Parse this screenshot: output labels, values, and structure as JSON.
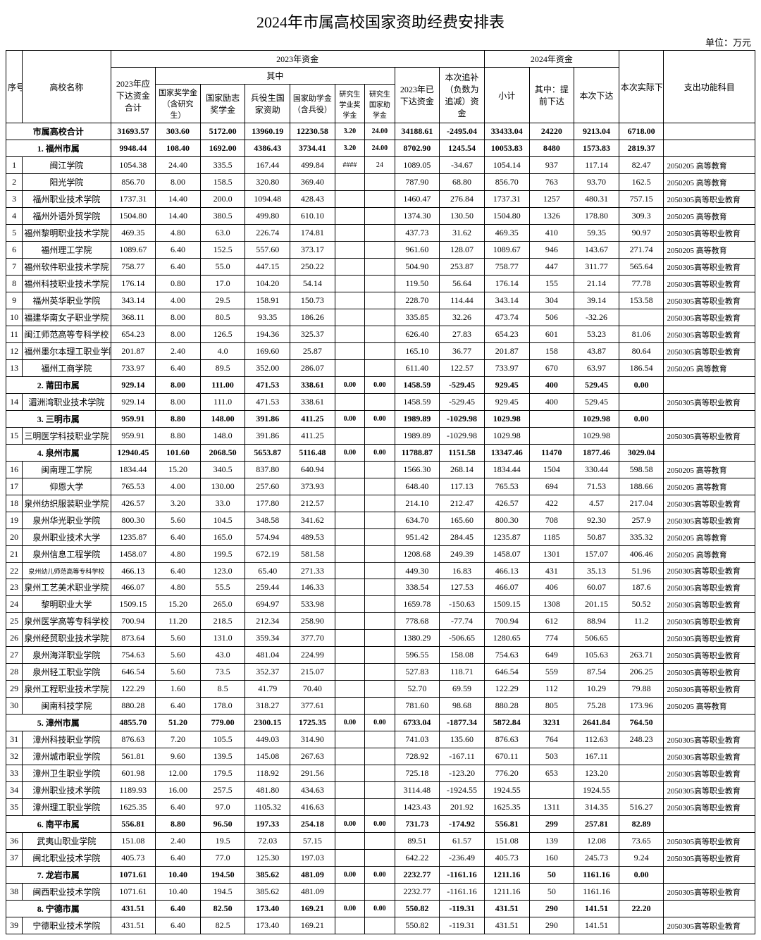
{
  "title": "2024年市属高校国家资助经费安排表",
  "unit": "单位：万元",
  "headers": {
    "idx": "序号",
    "name": "高校名称",
    "y2023": "2023年资金",
    "y2024": "2024年资金",
    "total2023": "2023年应下达资金合计",
    "ofwhich": "其中",
    "gjj": "国家奖学金（含研究生）",
    "gjlz": "国家励志奖学金",
    "bys": "兵役生国家资助",
    "gjzx": "国家助学金（含兵役）",
    "yjsxy": "研究生学业奖学金",
    "yjsgjzx": "研究生国家助学金",
    "already": "2023年已下达资金",
    "supp": "本次追补（负数为追减）资金",
    "subtotal": "小计",
    "pre": "其中：提前下达",
    "this": "本次下达",
    "actual": "本次实际下达资金",
    "cat": "支出功能科目"
  },
  "rows": [
    {
      "t": "sum",
      "bold": true,
      "idx": "",
      "name": "市属高校合计",
      "v": [
        "31693.57",
        "303.60",
        "5172.00",
        "13960.19",
        "12230.58",
        "3.20",
        "24.00",
        "34188.61",
        "-2495.04",
        "33433.04",
        "24220",
        "9213.04",
        "6718.00",
        ""
      ]
    },
    {
      "t": "sum",
      "bold": true,
      "idx": "",
      "name": "1. 福州市属",
      "v": [
        "9948.44",
        "108.40",
        "1692.00",
        "4386.43",
        "3734.41",
        "3.20",
        "24.00",
        "8702.90",
        "1245.54",
        "10053.83",
        "8480",
        "1573.83",
        "2819.37",
        ""
      ]
    },
    {
      "idx": "1",
      "name": "闽江学院",
      "v": [
        "1054.38",
        "24.40",
        "335.5",
        "167.44",
        "499.84",
        "####",
        "24",
        "1089.05",
        "-34.67",
        "1054.14",
        "937",
        "117.14",
        "82.47",
        "2050205 高等教育"
      ]
    },
    {
      "idx": "2",
      "name": "阳光学院",
      "v": [
        "856.70",
        "8.00",
        "158.5",
        "320.80",
        "369.40",
        "",
        "",
        "787.90",
        "68.80",
        "856.70",
        "763",
        "93.70",
        "162.5",
        "2050205 高等教育"
      ]
    },
    {
      "idx": "3",
      "name": "福州职业技术学院",
      "v": [
        "1737.31",
        "14.40",
        "200.0",
        "1094.48",
        "428.43",
        "",
        "",
        "1460.47",
        "276.84",
        "1737.31",
        "1257",
        "480.31",
        "757.15",
        "2050305高等职业教育"
      ]
    },
    {
      "idx": "4",
      "name": "福州外语外贸学院",
      "v": [
        "1504.80",
        "14.40",
        "380.5",
        "499.80",
        "610.10",
        "",
        "",
        "1374.30",
        "130.50",
        "1504.80",
        "1326",
        "178.80",
        "309.3",
        "2050205 高等教育"
      ]
    },
    {
      "idx": "5",
      "name": "福州黎明职业技术学院",
      "v": [
        "469.35",
        "4.80",
        "63.0",
        "226.74",
        "174.81",
        "",
        "",
        "437.73",
        "31.62",
        "469.35",
        "410",
        "59.35",
        "90.97",
        "2050305高等职业教育"
      ]
    },
    {
      "idx": "6",
      "name": "福州理工学院",
      "v": [
        "1089.67",
        "6.40",
        "152.5",
        "557.60",
        "373.17",
        "",
        "",
        "961.60",
        "128.07",
        "1089.67",
        "946",
        "143.67",
        "271.74",
        "2050205 高等教育"
      ]
    },
    {
      "idx": "7",
      "name": "福州软件职业技术学院",
      "v": [
        "758.77",
        "6.40",
        "55.0",
        "447.15",
        "250.22",
        "",
        "",
        "504.90",
        "253.87",
        "758.77",
        "447",
        "311.77",
        "565.64",
        "2050305高等职业教育"
      ]
    },
    {
      "idx": "8",
      "name": "福州科技职业技术学院",
      "v": [
        "176.14",
        "0.80",
        "17.0",
        "104.20",
        "54.14",
        "",
        "",
        "119.50",
        "56.64",
        "176.14",
        "155",
        "21.14",
        "77.78",
        "2050305高等职业教育"
      ]
    },
    {
      "idx": "9",
      "name": "福州英华职业学院",
      "v": [
        "343.14",
        "4.00",
        "29.5",
        "158.91",
        "150.73",
        "",
        "",
        "228.70",
        "114.44",
        "343.14",
        "304",
        "39.14",
        "153.58",
        "2050305高等职业教育"
      ]
    },
    {
      "idx": "10",
      "name": "福建华南女子职业学院",
      "v": [
        "368.11",
        "8.00",
        "80.5",
        "93.35",
        "186.26",
        "",
        "",
        "335.85",
        "32.26",
        "473.74",
        "506",
        "-32.26",
        "",
        "2050305高等职业教育"
      ]
    },
    {
      "idx": "11",
      "name": "闽江师范高等专科学校",
      "v": [
        "654.23",
        "8.00",
        "126.5",
        "194.36",
        "325.37",
        "",
        "",
        "626.40",
        "27.83",
        "654.23",
        "601",
        "53.23",
        "81.06",
        "2050305高等职业教育"
      ]
    },
    {
      "idx": "12",
      "name": "福州墨尔本理工职业学院",
      "v": [
        "201.87",
        "2.40",
        "4.0",
        "169.60",
        "25.87",
        "",
        "",
        "165.10",
        "36.77",
        "201.87",
        "158",
        "43.87",
        "80.64",
        "2050305高等职业教育"
      ]
    },
    {
      "idx": "13",
      "name": "福州工商学院",
      "v": [
        "733.97",
        "6.40",
        "89.5",
        "352.00",
        "286.07",
        "",
        "",
        "611.40",
        "122.57",
        "733.97",
        "670",
        "63.97",
        "186.54",
        "2050205 高等教育"
      ]
    },
    {
      "t": "sum",
      "bold": true,
      "idx": "",
      "name": "2. 莆田市属",
      "v": [
        "929.14",
        "8.00",
        "111.00",
        "471.53",
        "338.61",
        "0.00",
        "0.00",
        "1458.59",
        "-529.45",
        "929.45",
        "400",
        "529.45",
        "0.00",
        ""
      ]
    },
    {
      "idx": "14",
      "name": "湄洲湾职业技术学院",
      "v": [
        "929.14",
        "8.00",
        "111.0",
        "471.53",
        "338.61",
        "",
        "",
        "1458.59",
        "-529.45",
        "929.45",
        "400",
        "529.45",
        "",
        "2050305高等职业教育"
      ]
    },
    {
      "t": "sum",
      "bold": true,
      "idx": "",
      "name": "3. 三明市属",
      "v": [
        "959.91",
        "8.80",
        "148.00",
        "391.86",
        "411.25",
        "0.00",
        "0.00",
        "1989.89",
        "-1029.98",
        "1029.98",
        "",
        "1029.98",
        "0.00",
        ""
      ]
    },
    {
      "idx": "15",
      "name": "三明医学科技职业学院",
      "v": [
        "959.91",
        "8.80",
        "148.0",
        "391.86",
        "411.25",
        "",
        "",
        "1989.89",
        "-1029.98",
        "1029.98",
        "",
        "1029.98",
        "",
        "2050305高等职业教育"
      ]
    },
    {
      "t": "sum",
      "bold": true,
      "idx": "",
      "name": "4. 泉州市属",
      "v": [
        "12940.45",
        "101.60",
        "2068.50",
        "5653.87",
        "5116.48",
        "0.00",
        "0.00",
        "11788.87",
        "1151.58",
        "13347.46",
        "11470",
        "1877.46",
        "3029.04",
        ""
      ]
    },
    {
      "idx": "16",
      "name": "闽南理工学院",
      "v": [
        "1834.44",
        "15.20",
        "340.5",
        "837.80",
        "640.94",
        "",
        "",
        "1566.30",
        "268.14",
        "1834.44",
        "1504",
        "330.44",
        "598.58",
        "2050205 高等教育"
      ]
    },
    {
      "idx": "17",
      "name": "仰恩大学",
      "v": [
        "765.53",
        "4.00",
        "130.00",
        "257.60",
        "373.93",
        "",
        "",
        "648.40",
        "117.13",
        "765.53",
        "694",
        "71.53",
        "188.66",
        "2050205 高等教育"
      ]
    },
    {
      "idx": "18",
      "name": "泉州纺织服装职业学院",
      "v": [
        "426.57",
        "3.20",
        "33.0",
        "177.80",
        "212.57",
        "",
        "",
        "214.10",
        "212.47",
        "426.57",
        "422",
        "4.57",
        "217.04",
        "2050305高等职业教育"
      ]
    },
    {
      "idx": "19",
      "name": "泉州华光职业学院",
      "v": [
        "800.30",
        "5.60",
        "104.5",
        "348.58",
        "341.62",
        "",
        "",
        "634.70",
        "165.60",
        "800.30",
        "708",
        "92.30",
        "257.9",
        "2050305高等职业教育"
      ]
    },
    {
      "idx": "20",
      "name": "泉州职业技术大学",
      "v": [
        "1235.87",
        "6.40",
        "165.0",
        "574.94",
        "489.53",
        "",
        "",
        "951.42",
        "284.45",
        "1235.87",
        "1185",
        "50.87",
        "335.32",
        "2050205 高等教育"
      ]
    },
    {
      "idx": "21",
      "name": "泉州信息工程学院",
      "v": [
        "1458.07",
        "4.80",
        "199.5",
        "672.19",
        "581.58",
        "",
        "",
        "1208.68",
        "249.39",
        "1458.07",
        "1301",
        "157.07",
        "406.46",
        "2050205 高等教育"
      ]
    },
    {
      "idx": "22",
      "name": "泉州幼儿师范高等专科学校",
      "nameClass": "tiny",
      "v": [
        "466.13",
        "6.40",
        "123.0",
        "65.40",
        "271.33",
        "",
        "",
        "449.30",
        "16.83",
        "466.13",
        "431",
        "35.13",
        "51.96",
        "2050305高等职业教育"
      ]
    },
    {
      "idx": "23",
      "name": "泉州工艺美术职业学院",
      "v": [
        "466.07",
        "4.80",
        "55.5",
        "259.44",
        "146.33",
        "",
        "",
        "338.54",
        "127.53",
        "466.07",
        "406",
        "60.07",
        "187.6",
        "2050305高等职业教育"
      ]
    },
    {
      "idx": "24",
      "name": "黎明职业大学",
      "v": [
        "1509.15",
        "15.20",
        "265.0",
        "694.97",
        "533.98",
        "",
        "",
        "1659.78",
        "-150.63",
        "1509.15",
        "1308",
        "201.15",
        "50.52",
        "2050305高等职业教育"
      ]
    },
    {
      "idx": "25",
      "name": "泉州医学高等专科学校",
      "v": [
        "700.94",
        "11.20",
        "218.5",
        "212.34",
        "258.90",
        "",
        "",
        "778.68",
        "-77.74",
        "700.94",
        "612",
        "88.94",
        "11.2",
        "2050305高等职业教育"
      ]
    },
    {
      "idx": "26",
      "name": "泉州经贸职业技术学院",
      "v": [
        "873.64",
        "5.60",
        "131.0",
        "359.34",
        "377.70",
        "",
        "",
        "1380.29",
        "-506.65",
        "1280.65",
        "774",
        "506.65",
        "",
        "2050305高等职业教育"
      ]
    },
    {
      "idx": "27",
      "name": "泉州海洋职业学院",
      "v": [
        "754.63",
        "5.60",
        "43.0",
        "481.04",
        "224.99",
        "",
        "",
        "596.55",
        "158.08",
        "754.63",
        "649",
        "105.63",
        "263.71",
        "2050305高等职业教育"
      ]
    },
    {
      "idx": "28",
      "name": "泉州轻工职业学院",
      "v": [
        "646.54",
        "5.60",
        "73.5",
        "352.37",
        "215.07",
        "",
        "",
        "527.83",
        "118.71",
        "646.54",
        "559",
        "87.54",
        "206.25",
        "2050305高等职业教育"
      ]
    },
    {
      "idx": "29",
      "name": "泉州工程职业技术学院",
      "v": [
        "122.29",
        "1.60",
        "8.5",
        "41.79",
        "70.40",
        "",
        "",
        "52.70",
        "69.59",
        "122.29",
        "112",
        "10.29",
        "79.88",
        "2050305高等职业教育"
      ]
    },
    {
      "idx": "30",
      "name": "闽南科技学院",
      "v": [
        "880.28",
        "6.40",
        "178.0",
        "318.27",
        "377.61",
        "",
        "",
        "781.60",
        "98.68",
        "880.28",
        "805",
        "75.28",
        "173.96",
        "2050205 高等教育"
      ]
    },
    {
      "t": "sum",
      "bold": true,
      "idx": "",
      "name": "5. 漳州市属",
      "v": [
        "4855.70",
        "51.20",
        "779.00",
        "2300.15",
        "1725.35",
        "0.00",
        "0.00",
        "6733.04",
        "-1877.34",
        "5872.84",
        "3231",
        "2641.84",
        "764.50",
        ""
      ]
    },
    {
      "idx": "31",
      "name": "漳州科技职业学院",
      "v": [
        "876.63",
        "7.20",
        "105.5",
        "449.03",
        "314.90",
        "",
        "",
        "741.03",
        "135.60",
        "876.63",
        "764",
        "112.63",
        "248.23",
        "2050305高等职业教育"
      ]
    },
    {
      "idx": "32",
      "name": "漳州城市职业学院",
      "v": [
        "561.81",
        "9.60",
        "139.5",
        "145.08",
        "267.63",
        "",
        "",
        "728.92",
        "-167.11",
        "670.11",
        "503",
        "167.11",
        "",
        "2050305高等职业教育"
      ]
    },
    {
      "idx": "33",
      "name": "漳州卫生职业学院",
      "v": [
        "601.98",
        "12.00",
        "179.5",
        "118.92",
        "291.56",
        "",
        "",
        "725.18",
        "-123.20",
        "776.20",
        "653",
        "123.20",
        "",
        "2050305高等职业教育"
      ]
    },
    {
      "idx": "34",
      "name": "漳州职业技术学院",
      "v": [
        "1189.93",
        "16.00",
        "257.5",
        "481.80",
        "434.63",
        "",
        "",
        "3114.48",
        "-1924.55",
        "1924.55",
        "",
        "1924.55",
        "",
        "2050305高等职业教育"
      ]
    },
    {
      "idx": "35",
      "name": "漳州理工职业学院",
      "v": [
        "1625.35",
        "6.40",
        "97.0",
        "1105.32",
        "416.63",
        "",
        "",
        "1423.43",
        "201.92",
        "1625.35",
        "1311",
        "314.35",
        "516.27",
        "2050305高等职业教育"
      ]
    },
    {
      "t": "sum",
      "bold": true,
      "idx": "",
      "name": "6. 南平市属",
      "v": [
        "556.81",
        "8.80",
        "96.50",
        "197.33",
        "254.18",
        "0.00",
        "0.00",
        "731.73",
        "-174.92",
        "556.81",
        "299",
        "257.81",
        "82.89",
        ""
      ]
    },
    {
      "idx": "36",
      "name": "武夷山职业学院",
      "v": [
        "151.08",
        "2.40",
        "19.5",
        "72.03",
        "57.15",
        "",
        "",
        "89.51",
        "61.57",
        "151.08",
        "139",
        "12.08",
        "73.65",
        "2050305高等职业教育"
      ]
    },
    {
      "idx": "37",
      "name": "闽北职业技术学院",
      "v": [
        "405.73",
        "6.40",
        "77.0",
        "125.30",
        "197.03",
        "",
        "",
        "642.22",
        "-236.49",
        "405.73",
        "160",
        "245.73",
        "9.24",
        "2050305高等职业教育"
      ]
    },
    {
      "t": "sum",
      "bold": true,
      "idx": "",
      "name": "7. 龙岩市属",
      "v": [
        "1071.61",
        "10.40",
        "194.50",
        "385.62",
        "481.09",
        "0.00",
        "0.00",
        "2232.77",
        "-1161.16",
        "1211.16",
        "50",
        "1161.16",
        "0.00",
        ""
      ]
    },
    {
      "idx": "38",
      "name": "闽西职业技术学院",
      "v": [
        "1071.61",
        "10.40",
        "194.5",
        "385.62",
        "481.09",
        "",
        "",
        "2232.77",
        "-1161.16",
        "1211.16",
        "50",
        "1161.16",
        "",
        "2050305高等职业教育"
      ]
    },
    {
      "t": "sum",
      "bold": true,
      "idx": "",
      "name": "8. 宁德市属",
      "v": [
        "431.51",
        "6.40",
        "82.50",
        "173.40",
        "169.21",
        "0.00",
        "0.00",
        "550.82",
        "-119.31",
        "431.51",
        "290",
        "141.51",
        "22.20",
        ""
      ]
    },
    {
      "idx": "39",
      "name": "宁德职业技术学院",
      "v": [
        "431.51",
        "6.40",
        "82.5",
        "173.40",
        "169.21",
        "",
        "",
        "550.82",
        "-119.31",
        "431.51",
        "290",
        "141.51",
        "",
        "2050305高等职业教育"
      ]
    }
  ]
}
